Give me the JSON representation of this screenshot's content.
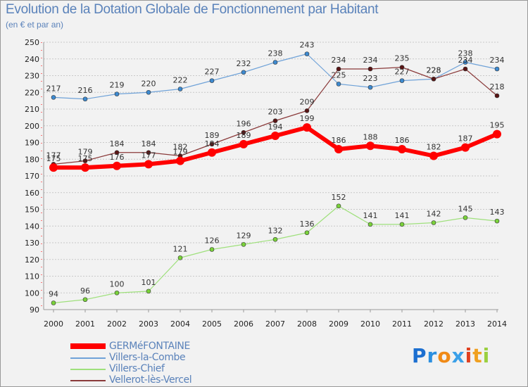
{
  "header": {
    "title": "Evolution de la Dotation Globale de Fonctionnement par Habitant",
    "subtitle": "(en € et par an)"
  },
  "logo": {
    "text": "Proxiti"
  },
  "chart_data": {
    "type": "line",
    "title": "Evolution de la Dotation Globale de Fonctionnement par Habitant",
    "subtitle": "(en € et par an)",
    "xlabel": "",
    "ylabel": "",
    "ylim": [
      90,
      250
    ],
    "ytick_step": 10,
    "grid": "horizontal dashed",
    "legend_position": "bottom-left",
    "categories": [
      "2000",
      "2001",
      "2002",
      "2003",
      "2004",
      "2005",
      "2006",
      "2007",
      "2008",
      "2009",
      "2010",
      "2011",
      "2012",
      "2013",
      "2014"
    ],
    "series": [
      {
        "name": "Villers-la-Combe",
        "color": "#6fa2d8",
        "marker": "#3d8ad0",
        "width": 1.2,
        "values": [
          217,
          216,
          219,
          220,
          222,
          227,
          232,
          238,
          243,
          225,
          223,
          227,
          228,
          238,
          234
        ]
      },
      {
        "name": "Villers-Chief",
        "color": "#9fe07c",
        "marker": "#7ad23a",
        "width": 1.2,
        "values": [
          94,
          96,
          100,
          101,
          121,
          126,
          129,
          132,
          136,
          152,
          141,
          141,
          142,
          145,
          143
        ]
      },
      {
        "name": "Vellerot-lès-Vercel",
        "color": "#8a3a3a",
        "marker": "#5a1515",
        "width": 1.2,
        "values": [
          177,
          179,
          184,
          184,
          182,
          189,
          196,
          203,
          209,
          234,
          234,
          235,
          228,
          234,
          218
        ]
      },
      {
        "name": "GERMéFONTAINE",
        "color": "#ff0000",
        "marker": "#ff0000",
        "width": 6,
        "values": [
          175,
          175,
          176,
          177,
          179,
          184,
          189,
          194,
          199,
          186,
          188,
          186,
          182,
          187,
          195
        ]
      }
    ],
    "legend": [
      "GERMéFONTAINE",
      "Villers-la-Combe",
      "Villers-Chief",
      "Vellerot-lès-Vercel"
    ]
  }
}
